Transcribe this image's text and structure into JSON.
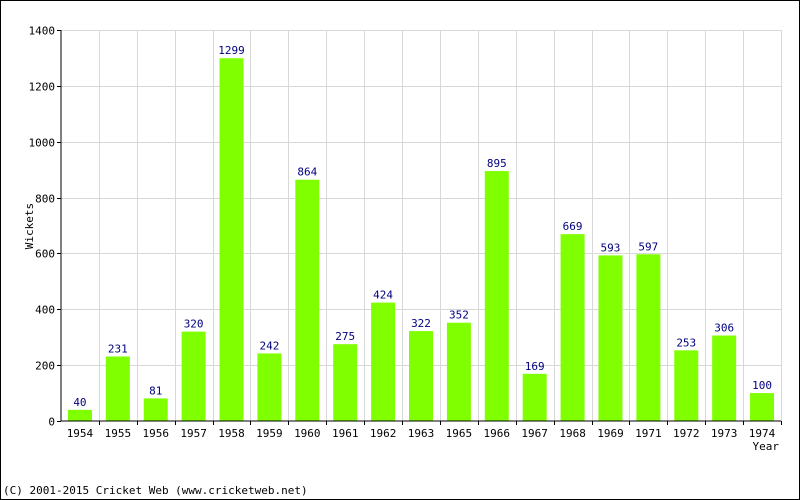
{
  "chart_data": {
    "type": "bar",
    "categories": [
      "1954",
      "1955",
      "1956",
      "1957",
      "1958",
      "1959",
      "1960",
      "1961",
      "1962",
      "1963",
      "1965",
      "1966",
      "1967",
      "1968",
      "1969",
      "1971",
      "1972",
      "1973",
      "1974"
    ],
    "values": [
      40,
      231,
      81,
      320,
      1299,
      242,
      864,
      275,
      424,
      322,
      352,
      895,
      169,
      669,
      593,
      597,
      253,
      306,
      100
    ],
    "data_labels": [
      "40",
      "231",
      "81",
      "320",
      "1299",
      "242",
      "864",
      "275",
      "424",
      "322",
      "352",
      "895",
      "169",
      "669",
      "593",
      "597",
      "253",
      "306",
      "100"
    ],
    "xlabel": "Year",
    "ylabel": "Wickets",
    "ylim": [
      0,
      1400
    ],
    "yticks": [
      0,
      200,
      400,
      600,
      800,
      1000,
      1200,
      1400
    ],
    "ytick_labels": [
      "0",
      "200",
      "400",
      "600",
      "800",
      "1000",
      "1200",
      "1400"
    ],
    "grid": true,
    "bar_color": "#80ff00",
    "label_color": "#000080"
  },
  "footer": {
    "copyright": "(C) 2001-2015 Cricket Web (www.cricketweb.net)"
  }
}
